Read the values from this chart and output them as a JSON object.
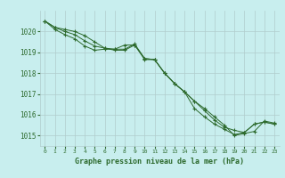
{
  "title": "Graphe pression niveau de la mer (hPa)",
  "background_color": "#c8eeee",
  "grid_color": "#b0cccc",
  "line_color": "#2d6a2d",
  "xlim": [
    -0.5,
    23.5
  ],
  "ylim": [
    1014.5,
    1021.0
  ],
  "yticks": [
    1015,
    1016,
    1017,
    1018,
    1019,
    1020
  ],
  "xticks": [
    0,
    1,
    2,
    3,
    4,
    5,
    6,
    7,
    8,
    9,
    10,
    11,
    12,
    13,
    14,
    15,
    16,
    17,
    18,
    19,
    20,
    21,
    22,
    23
  ],
  "series": [
    [
      1020.5,
      1020.2,
      1020.1,
      1020.0,
      1019.8,
      1019.5,
      1019.2,
      1019.1,
      1019.1,
      1019.35,
      1018.7,
      1018.65,
      1018.0,
      1017.5,
      1017.1,
      1016.65,
      1016.3,
      1015.9,
      1015.5,
      1015.0,
      1015.1,
      1015.2,
      1015.7,
      1015.6
    ],
    [
      1020.5,
      1020.2,
      1020.0,
      1019.85,
      1019.55,
      1019.3,
      1019.2,
      1019.15,
      1019.15,
      1019.4,
      1018.7,
      1018.65,
      1018.0,
      1017.5,
      1017.1,
      1016.65,
      1016.2,
      1015.75,
      1015.4,
      1015.25,
      1015.15,
      1015.55,
      1015.65,
      1015.55
    ],
    [
      1020.5,
      1020.1,
      1019.85,
      1019.65,
      1019.3,
      1019.1,
      1019.15,
      1019.15,
      1019.35,
      1019.35,
      1018.65,
      1018.65,
      1018.0,
      1017.5,
      1017.1,
      1016.3,
      1015.9,
      1015.55,
      1015.3,
      1015.05,
      1015.15,
      1015.55,
      1015.65,
      1015.55
    ]
  ]
}
